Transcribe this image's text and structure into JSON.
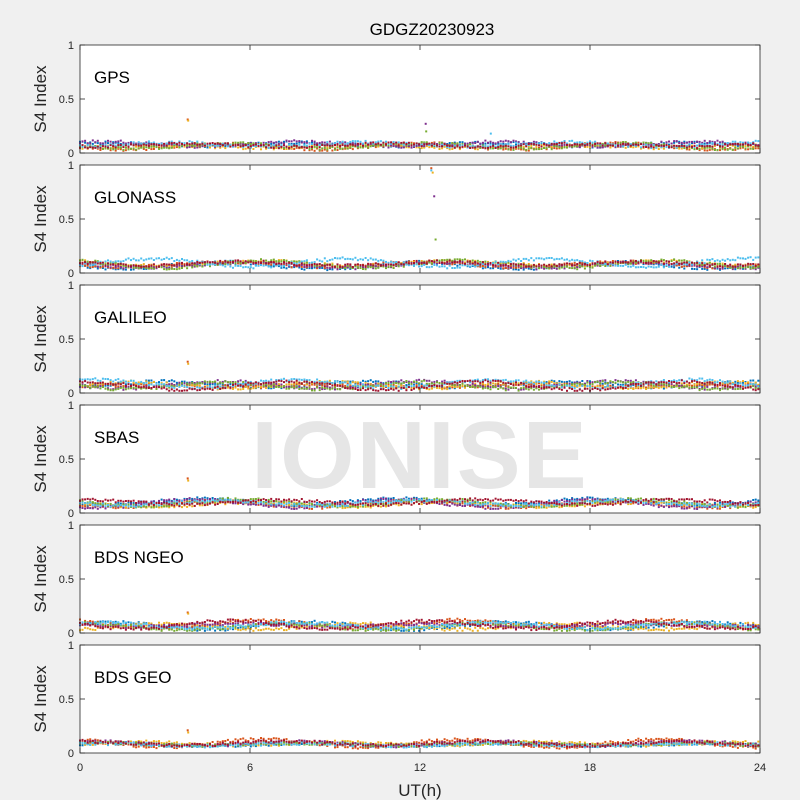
{
  "chart_data": {
    "type": "scatter",
    "title": "GDGZ20230923",
    "xlabel": "UT(h)",
    "ylabel": "S4 Index",
    "xlim": [
      0,
      24
    ],
    "ylim": [
      0,
      1
    ],
    "x_ticks": [
      "0",
      "6",
      "12",
      "18",
      "24"
    ],
    "y_ticks": [
      "0",
      "0.5",
      "1"
    ],
    "watermark": "IONISE",
    "series_colors": [
      "#0072BD",
      "#D95319",
      "#EDB120",
      "#7E2F8E",
      "#77AC30",
      "#4DBEEE",
      "#A2142F"
    ],
    "panels": [
      {
        "label": "GPS",
        "baseline": 0.07,
        "outliers": [
          {
            "x": 3.8,
            "y": 0.31
          },
          {
            "x": 3.82,
            "y": 0.3
          },
          {
            "x": 12.2,
            "y": 0.27
          },
          {
            "x": 12.22,
            "y": 0.2
          },
          {
            "x": 14.5,
            "y": 0.18
          }
        ]
      },
      {
        "label": "GLONASS",
        "baseline": 0.08,
        "outliers": [
          {
            "x": 12.4,
            "y": 0.97
          },
          {
            "x": 12.45,
            "y": 0.93
          },
          {
            "x": 12.5,
            "y": 0.71
          },
          {
            "x": 12.55,
            "y": 0.31
          },
          {
            "x": 12.4,
            "y": 0.95
          }
        ]
      },
      {
        "label": "GALILEO",
        "baseline": 0.08,
        "outliers": [
          {
            "x": 3.8,
            "y": 0.29
          },
          {
            "x": 3.82,
            "y": 0.27
          }
        ]
      },
      {
        "label": "SBAS",
        "baseline": 0.09,
        "outliers": [
          {
            "x": 3.8,
            "y": 0.32
          },
          {
            "x": 3.82,
            "y": 0.3
          }
        ]
      },
      {
        "label": "BDS NGEO",
        "baseline": 0.07,
        "outliers": [
          {
            "x": 3.8,
            "y": 0.19
          },
          {
            "x": 3.82,
            "y": 0.18
          }
        ]
      },
      {
        "label": "BDS GEO",
        "baseline": 0.09,
        "outliers": [
          {
            "x": 3.8,
            "y": 0.21
          },
          {
            "x": 3.82,
            "y": 0.19
          }
        ]
      }
    ]
  }
}
